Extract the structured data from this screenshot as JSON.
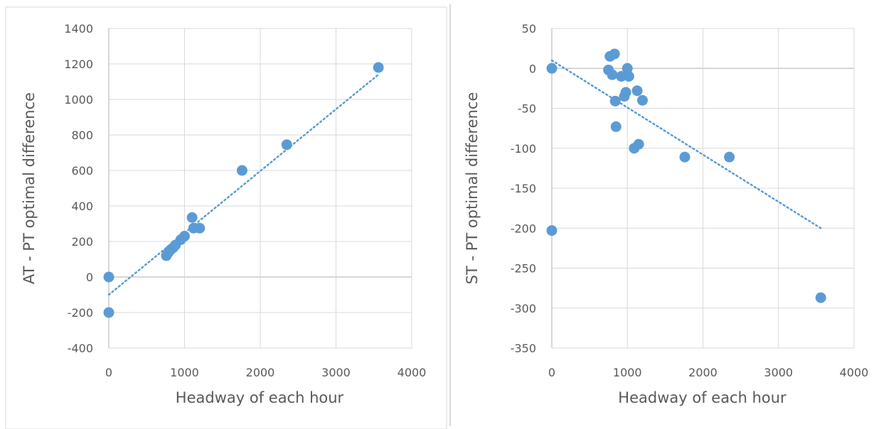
{
  "colors": {
    "series": "#5b9bd5",
    "trend": "#5b9bd5",
    "grid": "#d9d9d9",
    "text": "#595959"
  },
  "chart_data": [
    {
      "type": "scatter",
      "title": "",
      "xlabel": "Headway of each hour",
      "ylabel": "AT - PT optimal difference",
      "xlim": [
        0,
        4000
      ],
      "ylim": [
        -400,
        1400
      ],
      "xticks": [
        "0",
        "1000",
        "2000",
        "3000",
        "4000"
      ],
      "yticks": [
        "-400",
        "-200",
        "0",
        "200",
        "400",
        "600",
        "800",
        "1000",
        "1200",
        "1400"
      ],
      "grid": true,
      "series": [
        {
          "x": [
            0,
            0,
            760,
            790,
            820,
            850,
            880,
            950,
            1000,
            1100,
            1120,
            1200,
            1760,
            2350,
            3560
          ],
          "y": [
            0,
            -200,
            120,
            140,
            155,
            165,
            180,
            210,
            230,
            335,
            275,
            275,
            600,
            745,
            1180
          ]
        }
      ],
      "trendline": {
        "x": [
          0,
          3560
        ],
        "y": [
          -100,
          1140
        ]
      }
    },
    {
      "type": "scatter",
      "title": "",
      "xlabel": "Headway of each hour",
      "ylabel": "ST - PT optimal difference",
      "xlim": [
        0,
        4000
      ],
      "ylim": [
        -350,
        50
      ],
      "xticks": [
        "0",
        "1000",
        "2000",
        "3000",
        "4000"
      ],
      "yticks": [
        "50",
        "0",
        "-50",
        "-100",
        "-150",
        "-200",
        "-250",
        "-300",
        "-350"
      ],
      "grid": true,
      "series": [
        {
          "x": [
            0,
            0,
            750,
            770,
            800,
            830,
            840,
            850,
            920,
            960,
            980,
            1000,
            1020,
            1090,
            1130,
            1150,
            1200,
            1760,
            2350,
            3560
          ],
          "y": [
            0,
            -203,
            -2,
            15,
            -8,
            18,
            -41,
            -73,
            -10,
            -35,
            -30,
            0,
            -10,
            -100,
            -28,
            -95,
            -40,
            -111,
            -111,
            -287
          ]
        }
      ],
      "trendline": {
        "x": [
          0,
          3560
        ],
        "y": [
          10,
          -200
        ]
      }
    }
  ]
}
